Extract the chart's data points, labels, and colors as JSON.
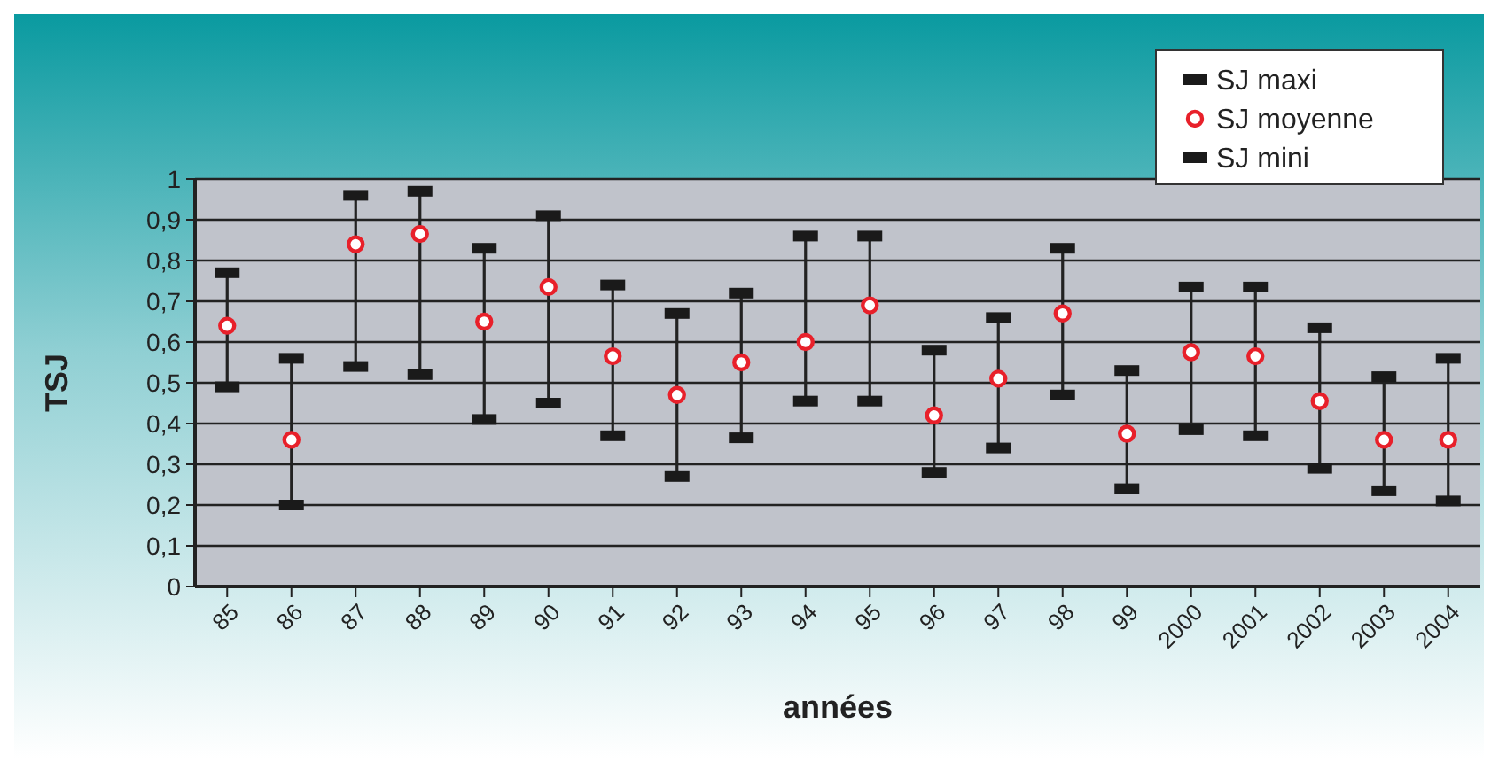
{
  "chart_data": {
    "type": "scatter",
    "xlabel": "années",
    "ylabel": "TSJ",
    "categories": [
      "85",
      "86",
      "87",
      "88",
      "89",
      "90",
      "91",
      "92",
      "93",
      "94",
      "95",
      "96",
      "97",
      "98",
      "99",
      "2000",
      "2001",
      "2002",
      "2003",
      "2004"
    ],
    "series": [
      {
        "name": "SJ maxi",
        "color": "#1a1a1a",
        "marker": "square",
        "values": [
          0.77,
          0.56,
          0.96,
          0.97,
          0.83,
          0.91,
          0.74,
          0.67,
          0.72,
          0.86,
          0.86,
          0.58,
          0.66,
          0.83,
          0.53,
          0.735,
          0.735,
          0.635,
          0.515,
          0.56
        ]
      },
      {
        "name": "SJ moyenne",
        "color": "#e8202a",
        "marker": "circle",
        "values": [
          0.64,
          0.36,
          0.84,
          0.865,
          0.65,
          0.735,
          0.565,
          0.47,
          0.55,
          0.6,
          0.69,
          0.42,
          0.51,
          0.67,
          0.375,
          0.575,
          0.565,
          0.455,
          0.36,
          0.36
        ]
      },
      {
        "name": "SJ mini",
        "color": "#1a1a1a",
        "marker": "square",
        "values": [
          0.49,
          0.2,
          0.54,
          0.52,
          0.41,
          0.45,
          0.37,
          0.27,
          0.365,
          0.455,
          0.455,
          0.28,
          0.34,
          0.47,
          0.24,
          0.385,
          0.37,
          0.29,
          0.235,
          0.21
        ]
      }
    ],
    "ylim": [
      0,
      1
    ],
    "yticks": [
      0,
      {
        "value": 0.1,
        "label": "0,1"
      },
      {
        "value": 0.2,
        "label": "0,2"
      },
      {
        "value": 0.3,
        "label": "0,3"
      },
      {
        "value": 0.4,
        "label": "0,4"
      },
      {
        "value": 0.5,
        "label": "0,5"
      },
      {
        "value": 0.6,
        "label": "0,6"
      },
      {
        "value": 0.7,
        "label": "0,7"
      },
      {
        "value": 0.8,
        "label": "0,8"
      },
      {
        "value": 0.9,
        "label": "0,9"
      },
      1
    ],
    "grid": "y",
    "legend": "top right"
  }
}
